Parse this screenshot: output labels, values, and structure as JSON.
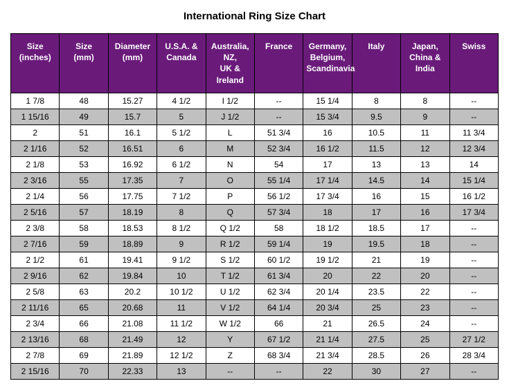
{
  "title": "International Ring Size Chart",
  "headerColor": "#6a1b7a",
  "stripeColor": "#c0c0c0",
  "columns": [
    "Size (inches)",
    "Size (mm)",
    "Diameter (mm)",
    "U.S.A. & Canada",
    "Australia, NZ, UK & Ireland",
    "France",
    "Germany, Belgium, Scandinavia",
    "Italy",
    "Japan, China & India",
    "Swiss"
  ],
  "rows": [
    [
      "1  7/8",
      "48",
      "15.27",
      "4  1/2",
      "I  1/2",
      "--",
      "15  1/4",
      "8",
      "8",
      "--"
    ],
    [
      "1 15/16",
      "49",
      "15.7",
      "5",
      "J  1/2",
      "--",
      "15  3/4",
      "9.5",
      "9",
      "--"
    ],
    [
      "2",
      "51",
      "16.1",
      "5  1/2",
      "L",
      "51 3/4",
      "16",
      "10.5",
      "11",
      "11 3/4"
    ],
    [
      "2  1/16",
      "52",
      "16.51",
      "6",
      "M",
      "52 3/4",
      "16  1/2",
      "11.5",
      "12",
      "12 3/4"
    ],
    [
      "2  1/8",
      "53",
      "16.92",
      "6  1/2",
      "N",
      "54",
      "17",
      "13",
      "13",
      "14"
    ],
    [
      "2  3/16",
      "55",
      "17.35",
      "7",
      "O",
      "55 1/4",
      "17  1/4",
      "14.5",
      "14",
      "15 1/4"
    ],
    [
      "2  1/4",
      "56",
      "17.75",
      "7  1/2",
      "P",
      "56 1/2",
      "17  3/4",
      "16",
      "15",
      "16 1/2"
    ],
    [
      "2  5/16",
      "57",
      "18.19",
      "8",
      "Q",
      "57 3/4",
      "18",
      "17",
      "16",
      "17 3/4"
    ],
    [
      "2  3/8",
      "58",
      "18.53",
      "8  1/2",
      "Q  1/2",
      "58",
      "18  1/2",
      "18.5",
      "17",
      "--"
    ],
    [
      "2  7/16",
      "59",
      "18.89",
      "9",
      "R  1/2",
      "59 1/4",
      "19",
      "19.5",
      "18",
      "--"
    ],
    [
      "2  1/2",
      "61",
      "19.41",
      "9  1/2",
      "S  1/2",
      "60 1/2",
      "19  1/2",
      "21",
      "19",
      "--"
    ],
    [
      "2  9/16",
      "62",
      "19.84",
      "10",
      "T  1/2",
      "61 3/4",
      "20",
      "22",
      "20",
      "--"
    ],
    [
      "2  5/8",
      "63",
      "20.2",
      "10  1/2",
      "U  1/2",
      "62 3/4",
      "20  1/4",
      "23.5",
      "22",
      "--"
    ],
    [
      "2 11/16",
      "65",
      "20.68",
      "11",
      "V  1/2",
      "64 1/4",
      "20  3/4",
      "25",
      "23",
      "--"
    ],
    [
      "2  3/4",
      "66",
      "21.08",
      "11  1/2",
      "W  1/2",
      "66",
      "21",
      "26.5",
      "24",
      "--"
    ],
    [
      "2 13/16",
      "68",
      "21.49",
      "12",
      "Y",
      "67 1/2",
      "21  1/4",
      "27.5",
      "25",
      "27 1/2"
    ],
    [
      "2  7/8",
      "69",
      "21.89",
      "12  1/2",
      "Z",
      "68 3/4",
      "21  3/4",
      "28.5",
      "26",
      "28 3/4"
    ],
    [
      "2 15/16",
      "70",
      "22.33",
      "13",
      "--",
      "--",
      "22",
      "30",
      "27",
      "--"
    ]
  ]
}
